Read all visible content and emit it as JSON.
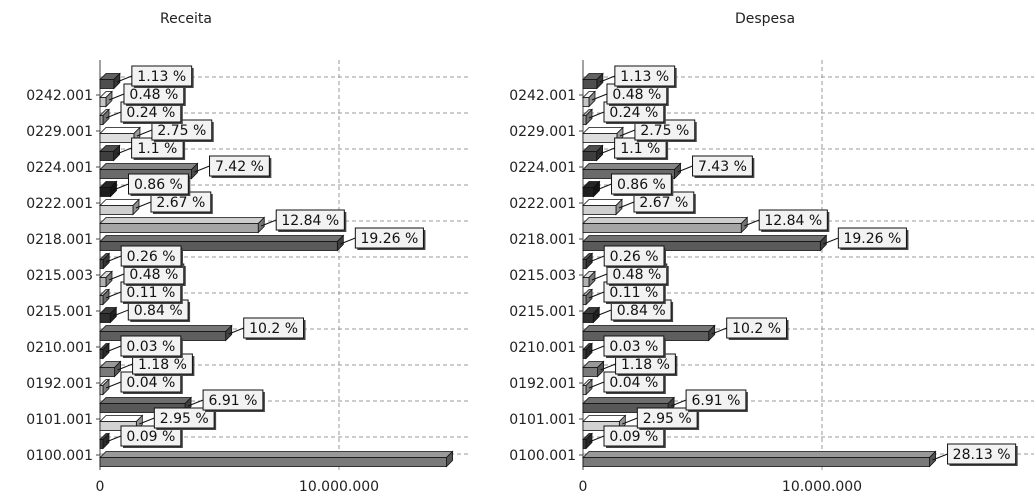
{
  "chart_data": [
    {
      "type": "bar",
      "orientation": "horizontal",
      "title": "Receita",
      "categories": [
        "0100.001",
        "0101.001",
        "0192.001",
        "0210.001",
        "0215.001",
        "0215.003",
        "0218.001",
        "0222.001",
        "0224.001",
        "0229.001",
        "0242.001"
      ],
      "x_tick_labels": [
        "0",
        "10.000.000"
      ],
      "xlim": [
        0,
        16000000
      ],
      "grid": true,
      "bars": [
        {
          "category": "0100.001",
          "value": 14500000,
          "label": "",
          "shade": "#7a7a7a"
        },
        {
          "category": "0100.001",
          "value": 46000,
          "label": "0.09 %",
          "shade": "#3a3a3a"
        },
        {
          "category": "0101.001",
          "value": 1520000,
          "label": "2.95 %",
          "shade": "#d2d2d2"
        },
        {
          "category": "0101.001",
          "value": 3560000,
          "label": "6.91 %",
          "shade": "#585858"
        },
        {
          "category": "0192.001",
          "value": 21000,
          "label": "0.04 %",
          "shade": "#b8b8b8"
        },
        {
          "category": "0192.001",
          "value": 610000,
          "label": "1.18 %",
          "shade": "#7a7a7a"
        },
        {
          "category": "0210.001",
          "value": 15000,
          "label": "0.03 %",
          "shade": "#3a3a3a"
        },
        {
          "category": "0210.001",
          "value": 5260000,
          "label": "10.2 %",
          "shade": "#5e5e5e"
        },
        {
          "category": "0215.001",
          "value": 430000,
          "label": "0.84 %",
          "shade": "#2e2e2e"
        },
        {
          "category": "0215.001",
          "value": 57000,
          "label": "0.11 %",
          "shade": "#9a9a9a"
        },
        {
          "category": "0215.003",
          "value": 250000,
          "label": "0.48 %",
          "shade": "#b0b0b0"
        },
        {
          "category": "0215.003",
          "value": 134000,
          "label": "0.26 %",
          "shade": "#4a4a4a"
        },
        {
          "category": "0218.001",
          "value": 9930000,
          "label": "19.26 %",
          "shade": "#5a5a5a"
        },
        {
          "category": "0218.001",
          "value": 6620000,
          "label": "12.84 %",
          "shade": "#a5a5a5"
        },
        {
          "category": "0222.001",
          "value": 1380000,
          "label": "2.67 %",
          "shade": "#cfcfcf"
        },
        {
          "category": "0222.001",
          "value": 440000,
          "label": "0.86 %",
          "shade": "#1e1e1e"
        },
        {
          "category": "0224.001",
          "value": 3830000,
          "label": "7.42 %",
          "shade": "#6a6a6a"
        },
        {
          "category": "0224.001",
          "value": 570000,
          "label": "1.1 %",
          "shade": "#3e3e3e"
        },
        {
          "category": "0229.001",
          "value": 1420000,
          "label": "2.75 %",
          "shade": "#dedede"
        },
        {
          "category": "0229.001",
          "value": 124000,
          "label": "0.24 %",
          "shade": "#a0a0a0"
        },
        {
          "category": "0242.001",
          "value": 250000,
          "label": "0.48 %",
          "shade": "#c4c4c4"
        },
        {
          "category": "0242.001",
          "value": 580000,
          "label": "1.13 %",
          "shade": "#4e4e4e"
        }
      ]
    },
    {
      "type": "bar",
      "orientation": "horizontal",
      "title": "Despesa",
      "categories": [
        "0100.001",
        "0101.001",
        "0192.001",
        "0210.001",
        "0215.001",
        "0215.003",
        "0218.001",
        "0222.001",
        "0224.001",
        "0229.001",
        "0242.001"
      ],
      "x_tick_labels": [
        "0",
        "10.000.000"
      ],
      "xlim": [
        0,
        16000000
      ],
      "grid": true,
      "bars": [
        {
          "category": "0100.001",
          "value": 14500000,
          "label": "28.13 %",
          "shade": "#7a7a7a"
        },
        {
          "category": "0100.001",
          "value": 46000,
          "label": "0.09 %",
          "shade": "#3a3a3a"
        },
        {
          "category": "0101.001",
          "value": 1520000,
          "label": "2.95 %",
          "shade": "#d2d2d2"
        },
        {
          "category": "0101.001",
          "value": 3560000,
          "label": "6.91 %",
          "shade": "#585858"
        },
        {
          "category": "0192.001",
          "value": 21000,
          "label": "0.04 %",
          "shade": "#b8b8b8"
        },
        {
          "category": "0192.001",
          "value": 610000,
          "label": "1.18 %",
          "shade": "#7a7a7a"
        },
        {
          "category": "0210.001",
          "value": 15000,
          "label": "0.03 %",
          "shade": "#3a3a3a"
        },
        {
          "category": "0210.001",
          "value": 5260000,
          "label": "10.2 %",
          "shade": "#5e5e5e"
        },
        {
          "category": "0215.001",
          "value": 430000,
          "label": "0.84 %",
          "shade": "#2e2e2e"
        },
        {
          "category": "0215.001",
          "value": 57000,
          "label": "0.11 %",
          "shade": "#9a9a9a"
        },
        {
          "category": "0215.003",
          "value": 250000,
          "label": "0.48 %",
          "shade": "#b0b0b0"
        },
        {
          "category": "0215.003",
          "value": 134000,
          "label": "0.26 %",
          "shade": "#4a4a4a"
        },
        {
          "category": "0218.001",
          "value": 9930000,
          "label": "19.26 %",
          "shade": "#5a5a5a"
        },
        {
          "category": "0218.001",
          "value": 6620000,
          "label": "12.84 %",
          "shade": "#a5a5a5"
        },
        {
          "category": "0222.001",
          "value": 1380000,
          "label": "2.67 %",
          "shade": "#cfcfcf"
        },
        {
          "category": "0222.001",
          "value": 440000,
          "label": "0.86 %",
          "shade": "#1e1e1e"
        },
        {
          "category": "0224.001",
          "value": 3830000,
          "label": "7.43 %",
          "shade": "#6a6a6a"
        },
        {
          "category": "0224.001",
          "value": 570000,
          "label": "1.1 %",
          "shade": "#3e3e3e"
        },
        {
          "category": "0229.001",
          "value": 1420000,
          "label": "2.75 %",
          "shade": "#dedede"
        },
        {
          "category": "0229.001",
          "value": 124000,
          "label": "0.24 %",
          "shade": "#a0a0a0"
        },
        {
          "category": "0242.001",
          "value": 250000,
          "label": "0.48 %",
          "shade": "#c4c4c4"
        },
        {
          "category": "0242.001",
          "value": 580000,
          "label": "1.13 %",
          "shade": "#4e4e4e"
        }
      ]
    }
  ]
}
